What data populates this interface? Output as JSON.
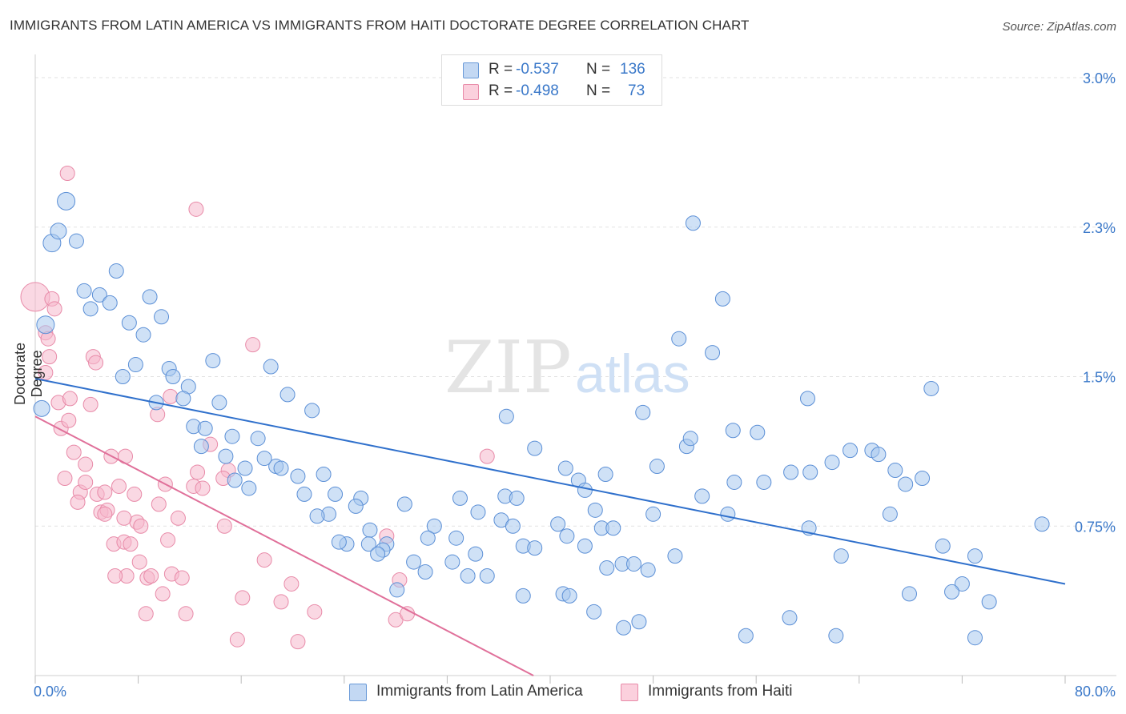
{
  "title": "IMMIGRANTS FROM LATIN AMERICA VS IMMIGRANTS FROM HAITI DOCTORATE DEGREE CORRELATION CHART",
  "source": "Source: ZipAtlas.com",
  "watermark": "ZIPatlas",
  "legend": {
    "rows": [
      {
        "r_label": "R =",
        "r_value": "-0.537",
        "n_label": "N =",
        "n_value": "136",
        "color": "#a8c8ef"
      },
      {
        "r_label": "R =",
        "r_value": "-0.498",
        "n_label": "N =",
        "n_value": "73",
        "color": "#f6b8cc"
      }
    ]
  },
  "bottom_legend": {
    "series1": "Immigrants from Latin America",
    "series2": "Immigrants from Haiti"
  },
  "chart_data": {
    "type": "scatter",
    "title": "IMMIGRANTS FROM LATIN AMERICA VS IMMIGRANTS FROM HAITI DOCTORATE DEGREE CORRELATION CHART",
    "xlabel": "",
    "ylabel": "Doctorate Degree",
    "xlim": [
      0,
      80
    ],
    "ylim": [
      0,
      3.0
    ],
    "x_tick_labels": [
      "0.0%",
      "80.0%"
    ],
    "y_tick_labels": [
      "0.75%",
      "1.5%",
      "2.3%",
      "3.0%"
    ],
    "y_ticks": [
      0.75,
      1.5,
      2.25,
      3.0
    ],
    "grid": true,
    "colors": {
      "series1": "#3a78c9",
      "series1_fill": "#a8c8ef",
      "series2": "#e0709a",
      "series2_fill": "#f6b8cc"
    },
    "series": [
      {
        "name": "Immigrants from Latin America",
        "trend": [
          [
            0,
            1.49
          ],
          [
            80,
            0.46
          ]
        ],
        "points": [
          [
            0.5,
            1.34,
            10
          ],
          [
            2.4,
            2.38,
            11
          ],
          [
            1.3,
            2.17,
            11
          ],
          [
            1.8,
            2.23,
            10
          ],
          [
            3.2,
            2.18,
            9
          ],
          [
            6.3,
            2.03,
            9
          ],
          [
            3.8,
            1.93,
            9
          ],
          [
            5.0,
            1.91,
            9
          ],
          [
            4.3,
            1.84,
            9
          ],
          [
            5.8,
            1.87,
            9
          ],
          [
            0.8,
            1.76,
            11
          ],
          [
            8.9,
            1.9,
            9
          ],
          [
            9.8,
            1.8,
            9
          ],
          [
            7.3,
            1.77,
            9
          ],
          [
            8.4,
            1.71,
            9
          ],
          [
            7.8,
            1.56,
            9
          ],
          [
            6.8,
            1.5,
            9
          ],
          [
            10.4,
            1.54,
            9
          ],
          [
            10.7,
            1.5,
            9
          ],
          [
            11.9,
            1.45,
            9
          ],
          [
            13.8,
            1.58,
            9
          ],
          [
            18.3,
            1.55,
            9
          ],
          [
            9.4,
            1.37,
            9
          ],
          [
            11.5,
            1.39,
            9
          ],
          [
            14.3,
            1.37,
            9
          ],
          [
            19.6,
            1.41,
            9
          ],
          [
            21.5,
            1.33,
            9
          ],
          [
            12.3,
            1.25,
            9
          ],
          [
            13.2,
            1.24,
            9
          ],
          [
            15.3,
            1.2,
            9
          ],
          [
            17.3,
            1.19,
            9
          ],
          [
            12.9,
            1.15,
            9
          ],
          [
            14.8,
            1.1,
            9
          ],
          [
            16.3,
            1.04,
            9
          ],
          [
            18.7,
            1.05,
            9
          ],
          [
            19.1,
            1.04,
            9
          ],
          [
            17.8,
            1.09,
            9
          ],
          [
            15.5,
            0.98,
            9
          ],
          [
            16.6,
            0.94,
            9
          ],
          [
            20.4,
            1.0,
            9
          ],
          [
            22.4,
            1.01,
            9
          ],
          [
            20.9,
            0.91,
            9
          ],
          [
            23.3,
            0.91,
            9
          ],
          [
            25.3,
            0.89,
            9
          ],
          [
            24.9,
            0.85,
            9
          ],
          [
            22.8,
            0.81,
            9
          ],
          [
            21.9,
            0.8,
            9
          ],
          [
            28.7,
            0.86,
            9
          ],
          [
            33.0,
            0.89,
            9
          ],
          [
            34.4,
            0.82,
            9
          ],
          [
            36.5,
            0.9,
            9
          ],
          [
            37.4,
            0.89,
            9
          ],
          [
            36.2,
            0.78,
            9
          ],
          [
            31.0,
            0.75,
            9
          ],
          [
            30.5,
            0.69,
            9
          ],
          [
            32.7,
            0.69,
            9
          ],
          [
            26.0,
            0.73,
            9
          ],
          [
            24.2,
            0.66,
            9
          ],
          [
            23.6,
            0.67,
            9
          ],
          [
            25.9,
            0.66,
            9
          ],
          [
            27.3,
            0.66,
            9
          ],
          [
            27.0,
            0.63,
            9
          ],
          [
            26.6,
            0.61,
            9
          ],
          [
            29.4,
            0.57,
            9
          ],
          [
            30.3,
            0.52,
            9
          ],
          [
            32.4,
            0.57,
            9
          ],
          [
            34.2,
            0.61,
            9
          ],
          [
            35.1,
            0.5,
            9
          ],
          [
            33.6,
            0.5,
            9
          ],
          [
            37.1,
            0.75,
            9
          ],
          [
            37.9,
            0.65,
            9
          ],
          [
            38.8,
            0.64,
            9
          ],
          [
            40.6,
            0.76,
            9
          ],
          [
            41.3,
            0.7,
            9
          ],
          [
            42.7,
            0.65,
            9
          ],
          [
            44.0,
            0.74,
            9
          ],
          [
            44.9,
            0.74,
            9
          ],
          [
            43.5,
            0.83,
            9
          ],
          [
            48.0,
            0.81,
            9
          ],
          [
            45.6,
            0.56,
            9
          ],
          [
            44.4,
            0.54,
            9
          ],
          [
            47.6,
            0.53,
            9
          ],
          [
            49.7,
            0.6,
            9
          ],
          [
            47.2,
            1.32,
            9
          ],
          [
            38.8,
            1.14,
            9
          ],
          [
            41.2,
            1.04,
            9
          ],
          [
            42.2,
            0.98,
            9
          ],
          [
            42.7,
            0.93,
            9
          ],
          [
            48.3,
            1.05,
            9
          ],
          [
            50.6,
            1.15,
            9
          ],
          [
            50.9,
            1.19,
            9
          ],
          [
            51.8,
            0.9,
            9
          ],
          [
            53.8,
            0.81,
            9
          ],
          [
            54.3,
            0.97,
            9
          ],
          [
            56.6,
            0.97,
            9
          ],
          [
            58.7,
            1.02,
            9
          ],
          [
            60.2,
            1.02,
            9
          ],
          [
            61.9,
            1.07,
            9
          ],
          [
            63.3,
            1.13,
            9
          ],
          [
            65.0,
            1.13,
            9
          ],
          [
            65.5,
            1.11,
            9
          ],
          [
            66.8,
            1.03,
            9
          ],
          [
            67.6,
            0.96,
            9
          ],
          [
            68.9,
            0.99,
            9
          ],
          [
            66.4,
            0.81,
            9
          ],
          [
            60.1,
            0.74,
            9
          ],
          [
            62.6,
            0.6,
            9
          ],
          [
            70.5,
            0.65,
            9
          ],
          [
            73.0,
            0.6,
            9
          ],
          [
            72.0,
            0.46,
            9
          ],
          [
            71.2,
            0.42,
            9
          ],
          [
            74.1,
            0.37,
            9
          ],
          [
            67.9,
            0.41,
            9
          ],
          [
            78.2,
            0.76,
            9
          ],
          [
            73.0,
            0.19,
            9
          ],
          [
            55.2,
            0.2,
            9
          ],
          [
            58.6,
            0.29,
            9
          ],
          [
            62.2,
            0.2,
            9
          ],
          [
            45.7,
            0.24,
            9
          ],
          [
            46.9,
            0.27,
            9
          ],
          [
            43.4,
            0.32,
            9
          ],
          [
            41.0,
            0.41,
            9
          ],
          [
            41.5,
            0.4,
            9
          ],
          [
            37.9,
            0.4,
            9
          ],
          [
            28.1,
            0.43,
            9
          ],
          [
            53.4,
            1.89,
            9
          ],
          [
            51.1,
            2.27,
            9
          ],
          [
            50.0,
            1.69,
            9
          ],
          [
            52.6,
            1.62,
            9
          ],
          [
            56.1,
            1.22,
            9
          ],
          [
            60.0,
            1.39,
            9
          ],
          [
            69.6,
            1.44,
            9
          ],
          [
            54.2,
            1.23,
            9
          ],
          [
            36.6,
            1.3,
            9
          ],
          [
            44.3,
            1.01,
            9
          ],
          [
            46.5,
            0.56,
            9
          ]
        ]
      },
      {
        "name": "Immigrants from Haiti",
        "trend": [
          [
            0,
            1.3
          ],
          [
            38.7,
            0.0
          ]
        ],
        "points": [
          [
            0.0,
            1.9,
            18
          ],
          [
            1.3,
            1.89,
            9
          ],
          [
            1.5,
            1.84,
            9
          ],
          [
            0.8,
            1.72,
            9
          ],
          [
            1.0,
            1.69,
            9
          ],
          [
            1.1,
            1.6,
            9
          ],
          [
            0.8,
            1.52,
            9
          ],
          [
            2.5,
            2.52,
            9
          ],
          [
            12.5,
            2.34,
            9
          ],
          [
            16.9,
            1.66,
            9
          ],
          [
            4.5,
            1.6,
            9
          ],
          [
            4.7,
            1.57,
            9
          ],
          [
            1.8,
            1.37,
            9
          ],
          [
            2.7,
            1.39,
            9
          ],
          [
            4.3,
            1.36,
            9
          ],
          [
            2.0,
            1.24,
            9
          ],
          [
            3.0,
            1.12,
            9
          ],
          [
            3.9,
            1.06,
            9
          ],
          [
            2.3,
            0.99,
            9
          ],
          [
            3.5,
            0.92,
            9
          ],
          [
            3.3,
            0.87,
            9
          ],
          [
            4.8,
            0.91,
            9
          ],
          [
            3.9,
            0.97,
            9
          ],
          [
            5.9,
            1.1,
            9
          ],
          [
            7.0,
            1.1,
            9
          ],
          [
            6.5,
            0.95,
            9
          ],
          [
            5.1,
            0.82,
            9
          ],
          [
            5.6,
            0.83,
            9
          ],
          [
            5.4,
            0.81,
            9
          ],
          [
            7.7,
            0.91,
            9
          ],
          [
            7.9,
            0.77,
            9
          ],
          [
            8.2,
            0.75,
            9
          ],
          [
            6.1,
            0.66,
            9
          ],
          [
            6.9,
            0.67,
            9
          ],
          [
            7.4,
            0.66,
            9
          ],
          [
            9.6,
            0.86,
            9
          ],
          [
            10.1,
            0.96,
            9
          ],
          [
            11.1,
            0.79,
            9
          ],
          [
            10.3,
            0.68,
            9
          ],
          [
            12.3,
            0.95,
            9
          ],
          [
            13.0,
            0.94,
            9
          ],
          [
            12.6,
            1.02,
            9
          ],
          [
            13.6,
            1.16,
            9
          ],
          [
            10.5,
            1.4,
            9
          ],
          [
            9.5,
            1.31,
            9
          ],
          [
            15.0,
            1.03,
            9
          ],
          [
            14.6,
            0.99,
            9
          ],
          [
            14.7,
            0.75,
            9
          ],
          [
            7.1,
            0.5,
            9
          ],
          [
            6.2,
            0.5,
            9
          ],
          [
            8.1,
            0.57,
            9
          ],
          [
            8.7,
            0.49,
            9
          ],
          [
            10.6,
            0.51,
            9
          ],
          [
            11.4,
            0.49,
            9
          ],
          [
            9.9,
            0.41,
            9
          ],
          [
            8.6,
            0.31,
            9
          ],
          [
            11.7,
            0.31,
            9
          ],
          [
            16.1,
            0.39,
            9
          ],
          [
            17.8,
            0.58,
            9
          ],
          [
            19.1,
            0.37,
            9
          ],
          [
            19.9,
            0.46,
            9
          ],
          [
            21.7,
            0.32,
            9
          ],
          [
            28.0,
            0.28,
            9
          ],
          [
            28.9,
            0.31,
            9
          ],
          [
            28.3,
            0.48,
            9
          ],
          [
            27.3,
            0.7,
            9
          ],
          [
            35.1,
            1.1,
            9
          ],
          [
            15.7,
            0.18,
            9
          ],
          [
            20.4,
            0.17,
            9
          ],
          [
            2.6,
            1.28,
            9
          ],
          [
            5.4,
            0.92,
            9
          ],
          [
            6.9,
            0.79,
            9
          ],
          [
            9.0,
            0.5,
            9
          ]
        ]
      }
    ]
  }
}
